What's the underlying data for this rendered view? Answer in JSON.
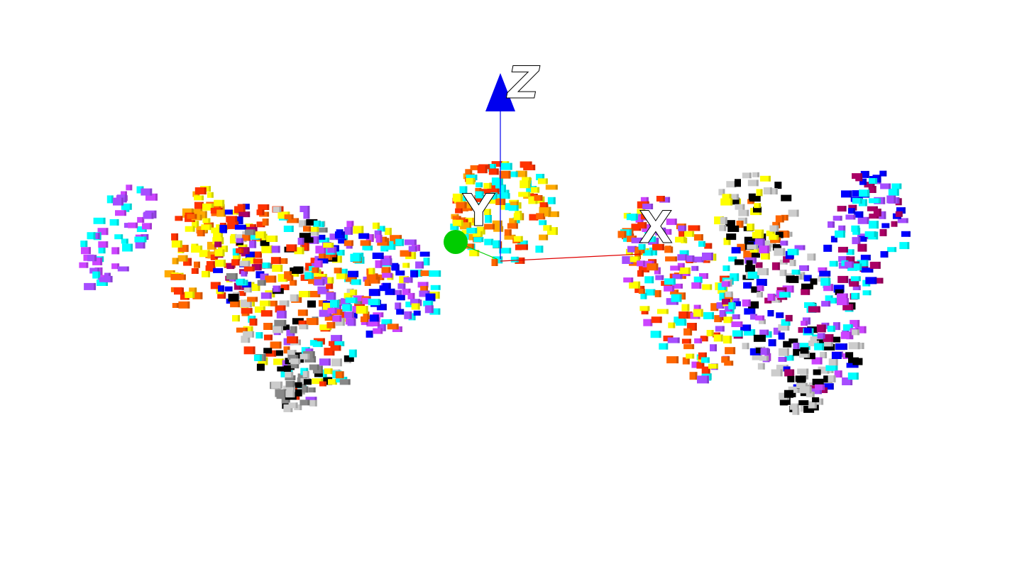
{
  "scene": {
    "background": "#ffffff",
    "axes": {
      "x": {
        "label": "X",
        "color": "#e00000"
      },
      "y": {
        "label": "Y",
        "color": "#00cc00"
      },
      "z": {
        "label": "Z",
        "color": "#0000ee"
      }
    },
    "voxel_palette": [
      "#00ffff",
      "#cc44ff",
      "#a64dff",
      "#ffff00",
      "#ff6600",
      "#ff3300",
      "#ffaa00",
      "#0000ff",
      "#aa0066",
      "#000000",
      "#cccccc",
      "#888888"
    ]
  }
}
